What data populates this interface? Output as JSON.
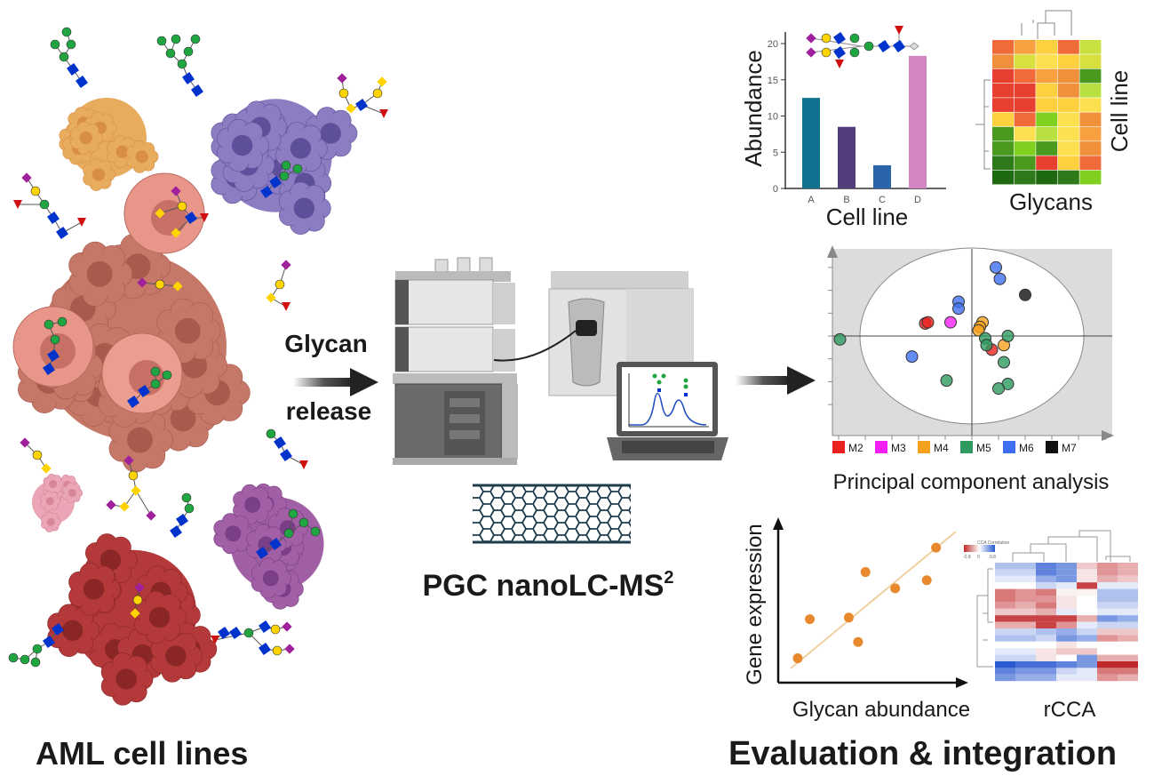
{
  "left": {
    "title": "AML cell lines"
  },
  "middle": {
    "arrow_label_line1": "Glycan",
    "arrow_label_line2": "release",
    "title": "PGC nanoLC-MS",
    "title_superscript": "2"
  },
  "right": {
    "title": "Evaluation & integration"
  },
  "glycan_colors": {
    "GlcNAc": "#0033cc",
    "Man": "#1fa640",
    "Gal": "#ffd400",
    "NeuAc": "#a0209c",
    "Fuc": "#d01010"
  },
  "chart_data": [
    {
      "type": "bar",
      "xlabel": "Cell line",
      "ylabel": "Abundance",
      "categories": [
        "A",
        "B",
        "C",
        "D"
      ],
      "values": [
        12.5,
        8.5,
        3.2,
        18.3
      ],
      "colors": [
        "#13728f",
        "#533d7a",
        "#2a64aa",
        "#d386c4"
      ],
      "yticks": [
        "0",
        "5",
        "10",
        "15",
        "20"
      ],
      "ylim": [
        0,
        22
      ]
    },
    {
      "type": "heatmap",
      "xlabel": "Glycans",
      "ylabel": "Cell line",
      "colors": [
        [
          "#f06a3a",
          "#f8a040",
          "#fdd040",
          "#f06a3a",
          "#c8e040"
        ],
        [
          "#f0903a",
          "#d8e040",
          "#fde050",
          "#fdd040",
          "#d8e040"
        ],
        [
          "#e84030",
          "#f06a3a",
          "#f8a040",
          "#f0903a",
          "#4a9a20"
        ],
        [
          "#e84030",
          "#e84030",
          "#fdd040",
          "#f0903a",
          "#b8e040"
        ],
        [
          "#e84030",
          "#e84030",
          "#fdd040",
          "#fdd040",
          "#fde050"
        ],
        [
          "#fdd040",
          "#f06a3a",
          "#80d020",
          "#fde050",
          "#f0903a"
        ],
        [
          "#4a9a20",
          "#fde050",
          "#b8e040",
          "#fde050",
          "#f8a040"
        ],
        [
          "#4a9a20",
          "#80d020",
          "#4a9a20",
          "#fde050",
          "#f0903a"
        ],
        [
          "#2e7a1a",
          "#4a9a20",
          "#e84030",
          "#fdd040",
          "#f06a3a"
        ],
        [
          "#1e6a10",
          "#2e7a1a",
          "#1e6a10",
          "#2e7a1a",
          "#80d020"
        ]
      ]
    },
    {
      "type": "scatter",
      "title": "Principal component analysis",
      "legend_position": "bottom",
      "legend": [
        {
          "name": "M2",
          "color": "#e8231f"
        },
        {
          "name": "M3",
          "color": "#f21ff2"
        },
        {
          "name": "M4",
          "color": "#f7a21d"
        },
        {
          "name": "M5",
          "color": "#2e9a5f"
        },
        {
          "name": "M6",
          "color": "#3f6ff0"
        },
        {
          "name": "M7",
          "color": "#111111"
        }
      ],
      "confidence_ellipse": {
        "rx": 4.2,
        "ry": 3.85
      },
      "xlim": [
        -5.3,
        5.3
      ],
      "ylim": [
        -3.9,
        3.9
      ],
      "points": [
        {
          "group": "M6",
          "x": 0.9,
          "y": 3.0
        },
        {
          "group": "M6",
          "x": 1.05,
          "y": 2.5
        },
        {
          "group": "M6",
          "x": -0.5,
          "y": 1.5
        },
        {
          "group": "M6",
          "x": -0.5,
          "y": 1.2
        },
        {
          "group": "M6",
          "x": -2.25,
          "y": -0.9
        },
        {
          "group": "M7",
          "x": 2.0,
          "y": 1.8
        },
        {
          "group": "M2",
          "x": -1.75,
          "y": 0.55
        },
        {
          "group": "M2",
          "x": -1.65,
          "y": 0.6
        },
        {
          "group": "M2",
          "x": 0.75,
          "y": -0.6
        },
        {
          "group": "M3",
          "x": -0.8,
          "y": 0.6
        },
        {
          "group": "M4",
          "x": 0.4,
          "y": 0.6
        },
        {
          "group": "M4",
          "x": 0.3,
          "y": 0.4
        },
        {
          "group": "M4",
          "x": 0.25,
          "y": 0.25
        },
        {
          "group": "M4",
          "x": 1.2,
          "y": -0.4
        },
        {
          "group": "M5",
          "x": -4.95,
          "y": -0.15
        },
        {
          "group": "M5",
          "x": 0.5,
          "y": -0.1
        },
        {
          "group": "M5",
          "x": 0.55,
          "y": -0.4
        },
        {
          "group": "M5",
          "x": 1.35,
          "y": 0.0
        },
        {
          "group": "M5",
          "x": 1.2,
          "y": -1.15
        },
        {
          "group": "M5",
          "x": -0.95,
          "y": -1.95
        },
        {
          "group": "M5",
          "x": 1.35,
          "y": -2.1
        },
        {
          "group": "M5",
          "x": 1.0,
          "y": -2.3
        }
      ]
    },
    {
      "type": "scatter",
      "xlabel": "Glycan abundance",
      "ylabel": "Gene expression",
      "point_color": "#e8892e",
      "trendline": true,
      "xlim": [
        0,
        10
      ],
      "ylim": [
        0,
        10
      ],
      "points": [
        {
          "x": 1.05,
          "y": 1.5
        },
        {
          "x": 1.7,
          "y": 3.9
        },
        {
          "x": 3.8,
          "y": 4.0
        },
        {
          "x": 4.3,
          "y": 2.5
        },
        {
          "x": 4.7,
          "y": 6.8
        },
        {
          "x": 6.3,
          "y": 5.8
        },
        {
          "x": 8.0,
          "y": 6.3
        },
        {
          "x": 8.5,
          "y": 8.3
        }
      ]
    },
    {
      "type": "heatmap",
      "xlabel": "rCCA",
      "legend_title": "CCA Correlation",
      "legend_ticks": [
        "-0.8",
        "0",
        "0.8"
      ],
      "range": [
        -0.8,
        0.8
      ],
      "values": [
        [
          0.3,
          0.3,
          0.6,
          0.5,
          -0.2,
          -0.4,
          -0.3
        ],
        [
          0.2,
          0.2,
          0.6,
          0.5,
          -0.1,
          -0.4,
          -0.3
        ],
        [
          0.1,
          0.1,
          0.4,
          0.5,
          -0.1,
          -0.3,
          -0.2
        ],
        [
          0,
          0,
          0.2,
          0.1,
          -0.7,
          0.1,
          0.1
        ],
        [
          -0.5,
          -0.4,
          -0.5,
          -0.05,
          -0.05,
          0.3,
          0.3
        ],
        [
          -0.5,
          -0.4,
          -0.4,
          -0.1,
          0,
          0.3,
          0.3
        ],
        [
          -0.4,
          -0.3,
          -0.5,
          -0.1,
          0,
          0.2,
          0.2
        ],
        [
          -0.2,
          -0.2,
          -0.3,
          0.1,
          0,
          0.1,
          0.1
        ],
        [
          -0.7,
          -0.7,
          -0.7,
          -0.7,
          -0.3,
          0.5,
          0.4
        ],
        [
          -0.3,
          -0.3,
          -0.7,
          -0.4,
          0.1,
          0.2,
          0.2
        ],
        [
          0.2,
          0.2,
          0.3,
          0.4,
          0.2,
          -0.2,
          -0.2
        ],
        [
          0.3,
          0.3,
          0.2,
          0.5,
          0.4,
          -0.4,
          -0.3
        ],
        [
          0,
          0,
          0,
          -0.1,
          0,
          0,
          0
        ],
        [
          0.1,
          0.1,
          -0.1,
          -0.2,
          -0.2,
          0,
          0
        ],
        [
          0.2,
          0.2,
          -0.1,
          0,
          0.5,
          -0.3,
          -0.3
        ],
        [
          0.8,
          0.7,
          0.7,
          0.6,
          0.5,
          -0.8,
          -0.8
        ],
        [
          0.6,
          0.5,
          0.5,
          0.2,
          0.1,
          -0.5,
          -0.5
        ],
        [
          0.5,
          0.4,
          0.4,
          0.1,
          0.1,
          -0.4,
          -0.3
        ]
      ]
    }
  ]
}
